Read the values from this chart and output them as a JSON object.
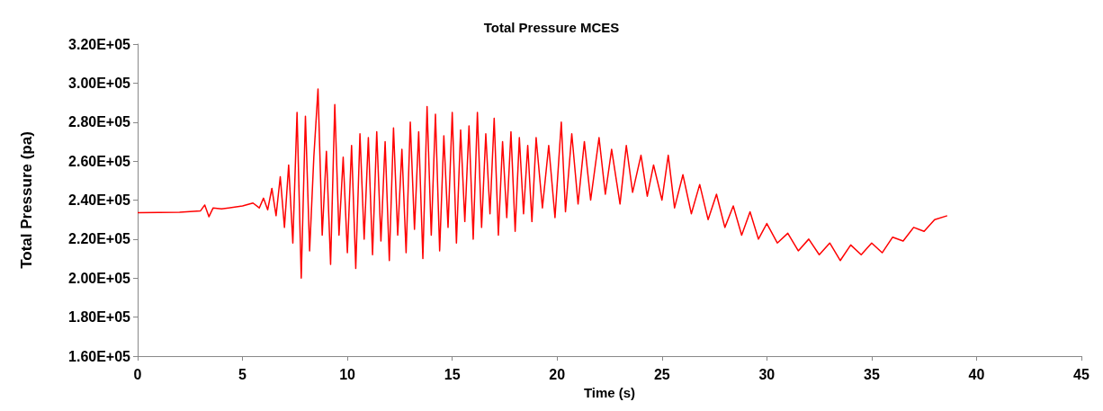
{
  "chart_data": {
    "type": "line",
    "title": "Total Pressure MCES",
    "xlabel": "Time (s)",
    "ylabel": "Total Pressure (pa)",
    "x": [
      0,
      2,
      3,
      3.2,
      3.4,
      3.6,
      4,
      5,
      5.5,
      5.8,
      6,
      6.2,
      6.4,
      6.6,
      6.8,
      7,
      7.2,
      7.4,
      7.6,
      7.8,
      8,
      8.2,
      8.4,
      8.6,
      8.8,
      9,
      9.2,
      9.4,
      9.6,
      9.8,
      10,
      10.2,
      10.4,
      10.6,
      10.8,
      11,
      11.2,
      11.4,
      11.6,
      11.8,
      12,
      12.2,
      12.4,
      12.6,
      12.8,
      13,
      13.2,
      13.4,
      13.6,
      13.8,
      14,
      14.2,
      14.4,
      14.6,
      14.8,
      15,
      15.2,
      15.4,
      15.6,
      15.8,
      16,
      16.2,
      16.4,
      16.6,
      16.8,
      17,
      17.2,
      17.4,
      17.6,
      17.8,
      18,
      18.2,
      18.4,
      18.6,
      18.8,
      19,
      19.3,
      19.6,
      19.9,
      20.2,
      20.4,
      20.7,
      21,
      21.3,
      21.6,
      22,
      22.3,
      22.6,
      23,
      23.3,
      23.6,
      24,
      24.3,
      24.6,
      25,
      25.3,
      25.6,
      26,
      26.4,
      26.8,
      27.2,
      27.6,
      28,
      28.4,
      28.8,
      29.2,
      29.6,
      30,
      30.5,
      31,
      31.5,
      32,
      32.5,
      33,
      33.5,
      34,
      34.5,
      35,
      35.5,
      36,
      36.5,
      37,
      37.5,
      38,
      38.6
    ],
    "series": [
      {
        "color": "#ff0000",
        "values": [
          233500,
          233800,
          234500,
          237500,
          231500,
          236000,
          235500,
          237000,
          238500,
          236000,
          241000,
          235000,
          246000,
          232000,
          252000,
          226000,
          258000,
          218000,
          285000,
          200000,
          283000,
          214000,
          262000,
          297000,
          222000,
          265000,
          207000,
          289000,
          222000,
          262000,
          213000,
          268000,
          205000,
          274000,
          220000,
          272000,
          212000,
          275000,
          219000,
          270000,
          209000,
          277000,
          222000,
          266000,
          213000,
          280000,
          225000,
          275000,
          210000,
          288000,
          222000,
          284000,
          214000,
          273000,
          226000,
          285000,
          218000,
          276000,
          229000,
          278000,
          220000,
          285000,
          226000,
          274000,
          233000,
          282000,
          222000,
          270000,
          231000,
          275000,
          224000,
          272000,
          233000,
          268000,
          229000,
          272000,
          236000,
          268000,
          231000,
          280000,
          234000,
          274000,
          238000,
          270000,
          240000,
          272000,
          243000,
          266000,
          238000,
          268000,
          244000,
          263000,
          242000,
          258000,
          240000,
          263000,
          236000,
          253000,
          233000,
          248000,
          230000,
          243000,
          226000,
          237000,
          222000,
          234000,
          220000,
          228000,
          218000,
          223000,
          214000,
          220000,
          212000,
          218000,
          209000,
          217000,
          212000,
          218000,
          213000,
          221000,
          219000,
          226000,
          224000,
          230000,
          232000
        ]
      }
    ],
    "xlim": [
      0,
      45
    ],
    "xticks": [
      0,
      5,
      10,
      15,
      20,
      25,
      30,
      35,
      40,
      45
    ],
    "ylim": [
      160000,
      320000
    ],
    "yticks": [
      {
        "value": 160000,
        "label": "1.60E+05"
      },
      {
        "value": 180000,
        "label": "1.80E+05"
      },
      {
        "value": 200000,
        "label": "2.00E+05"
      },
      {
        "value": 220000,
        "label": "2.20E+05"
      },
      {
        "value": 240000,
        "label": "2.40E+05"
      },
      {
        "value": 260000,
        "label": "2.60E+05"
      },
      {
        "value": 280000,
        "label": "2.80E+05"
      },
      {
        "value": 300000,
        "label": "3.00E+05"
      },
      {
        "value": 320000,
        "label": "3.20E+05"
      }
    ],
    "grid": false,
    "marker": "none",
    "line_style": "solid"
  }
}
